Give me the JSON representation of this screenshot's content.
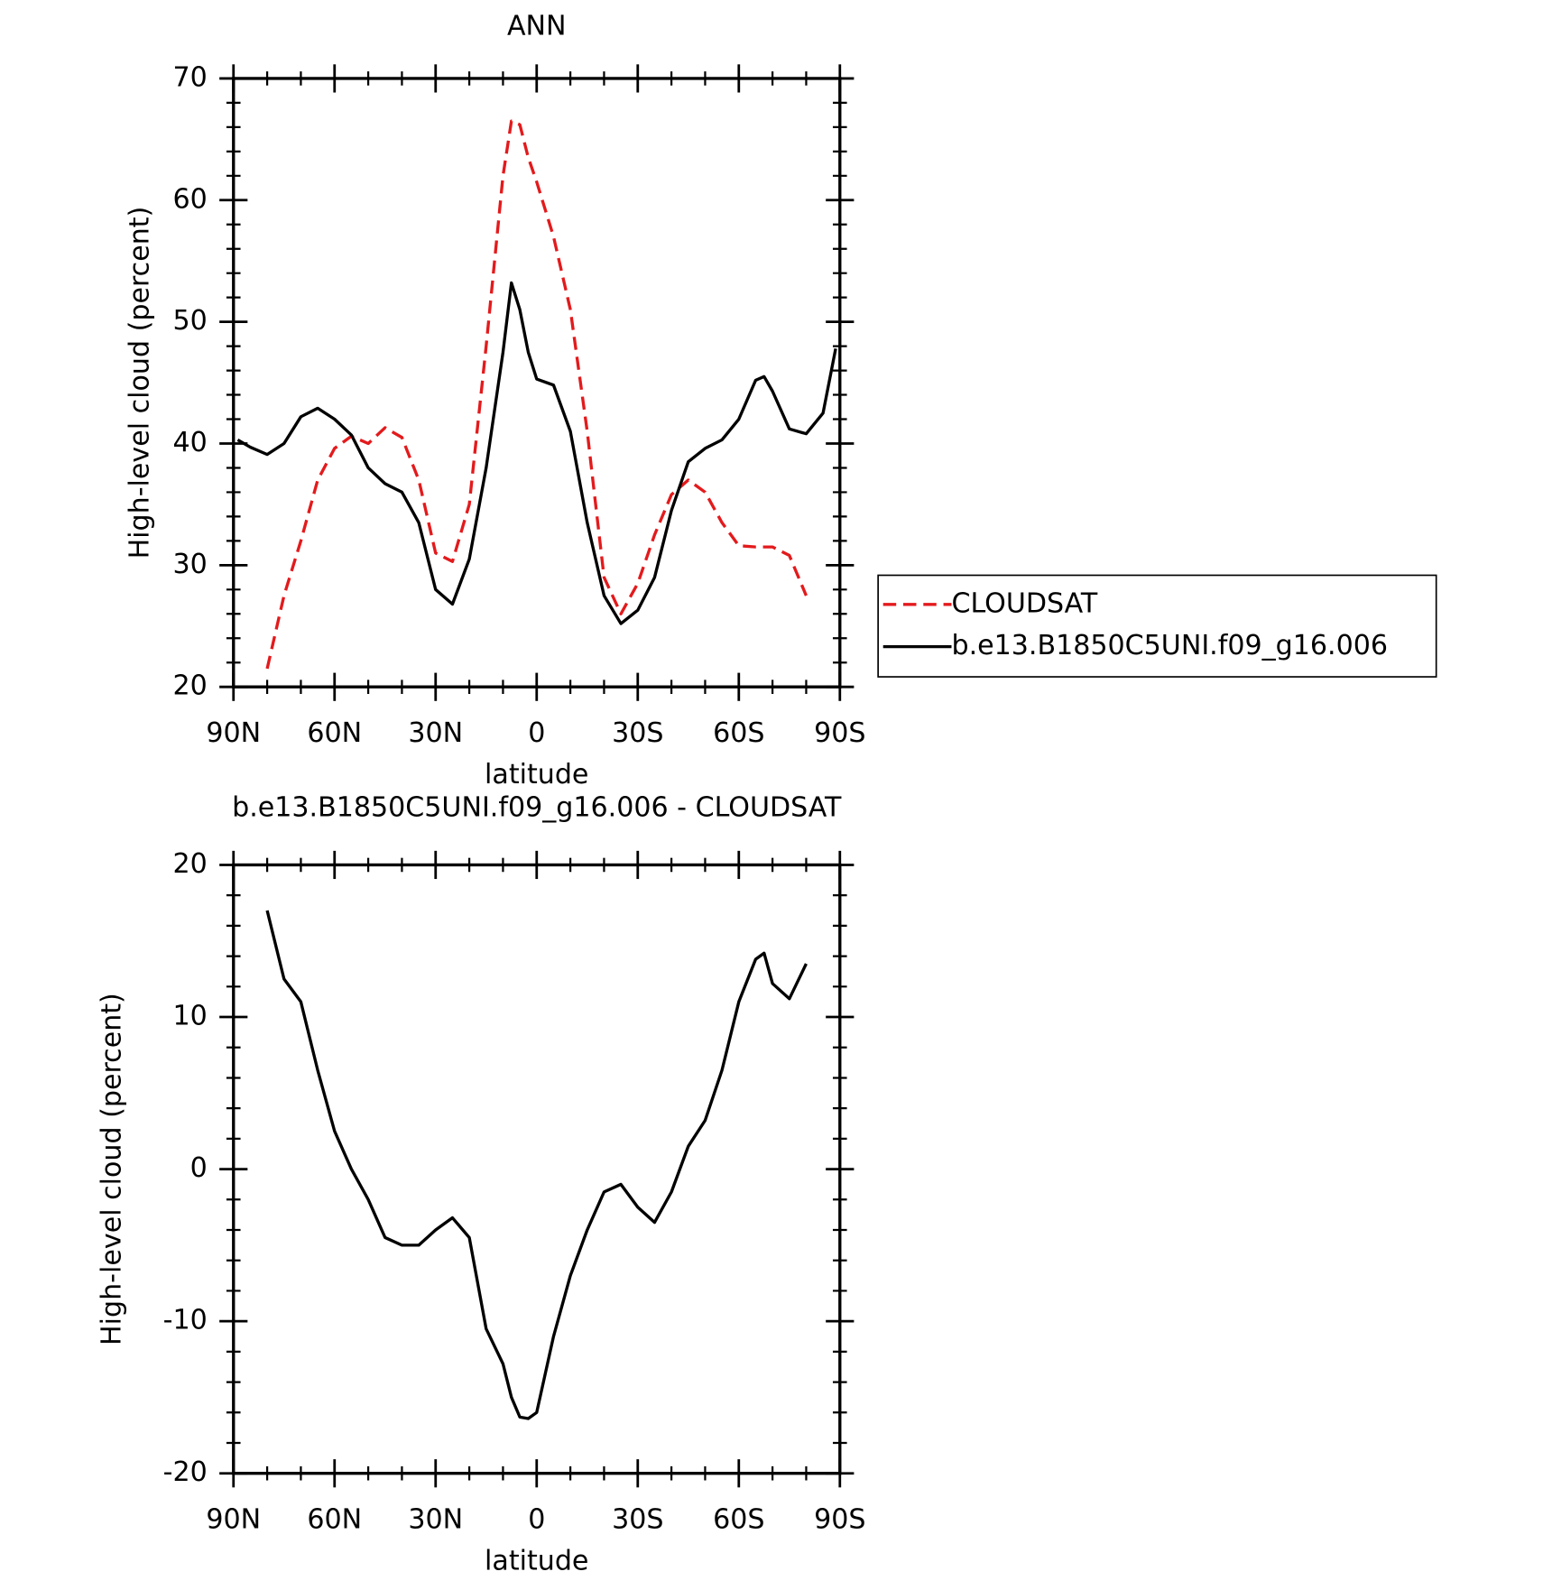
{
  "chart_data": [
    {
      "type": "line",
      "title": "ANN",
      "xlabel": "latitude",
      "ylabel": "High-level cloud (percent)",
      "x": [
        88.75,
        85,
        80,
        75,
        70,
        65,
        60,
        55,
        50,
        45,
        40,
        35,
        30,
        25,
        20,
        15,
        10,
        7.5,
        5,
        2.5,
        0,
        -5,
        -10,
        -15,
        -20,
        -25,
        -30,
        -35,
        -40,
        -45,
        -50,
        -55,
        -60,
        -65,
        -67.5,
        -70,
        -75,
        -80,
        -85,
        -88.75
      ],
      "series": [
        {
          "name": "CLOUDSAT",
          "color": "#e31a1c",
          "line_style": "dashed",
          "values": [
            null,
            null,
            21.5,
            27.5,
            32,
            37,
            39.6,
            40.6,
            40,
            41.3,
            40.5,
            37,
            31,
            30.3,
            35,
            48,
            62,
            66.5,
            66.2,
            63.5,
            61.5,
            57,
            51,
            41,
            29,
            26,
            28.5,
            32.5,
            35.8,
            37,
            36,
            33.5,
            31.6,
            31.5,
            31.5,
            31.5,
            30.8,
            27.5,
            null,
            null
          ]
        },
        {
          "name": "b.e13.B1850C5UNI.f09_g16.006",
          "color": "#000000",
          "line_style": "solid",
          "values": [
            40.3,
            39.7,
            39.1,
            40.0,
            42.2,
            42.9,
            42.0,
            40.7,
            38.0,
            36.7,
            36.0,
            33.5,
            28.0,
            26.8,
            30.5,
            38.0,
            47.5,
            53.2,
            51,
            47.5,
            45.3,
            44.8,
            41,
            33.5,
            27.5,
            25.2,
            26.3,
            29,
            34.5,
            38.5,
            39.6,
            40.3,
            42,
            45.2,
            45.5,
            44.3,
            41.2,
            40.8,
            42.5,
            47.8
          ]
        }
      ],
      "xlim": [
        90,
        -90
      ],
      "xticks": [
        {
          "value": 90,
          "label": "90N"
        },
        {
          "value": 60,
          "label": "60N"
        },
        {
          "value": 30,
          "label": "30N"
        },
        0,
        {
          "value": -30,
          "label": "30S"
        },
        {
          "value": -60,
          "label": "60S"
        },
        {
          "value": -90,
          "label": "90S"
        }
      ],
      "ylim": [
        20,
        70
      ],
      "yticks": [
        20,
        30,
        40,
        50,
        60,
        70
      ],
      "grid": false,
      "legend": "right"
    },
    {
      "type": "line",
      "title": "b.e13.B1850C5UNI.f09_g16.006 - CLOUDSAT",
      "xlabel": "latitude",
      "ylabel": "High-level cloud (percent)",
      "x": [
        88.75,
        85,
        80,
        75,
        70,
        65,
        60,
        55,
        50,
        45,
        40,
        35,
        30,
        25,
        20,
        15,
        10,
        7.5,
        5,
        2.5,
        0,
        -5,
        -10,
        -15,
        -20,
        -25,
        -30,
        -35,
        -40,
        -45,
        -50,
        -55,
        -60,
        -65,
        -67.5,
        -70,
        -75,
        -80,
        -85,
        -88.75
      ],
      "series": [
        {
          "color": "#000000",
          "line_style": "solid",
          "values": [
            null,
            null,
            17,
            12.5,
            11,
            6.5,
            2.5,
            0,
            -2,
            -4.5,
            -5,
            -5,
            -4,
            -3.2,
            -4.5,
            -10.5,
            -12.8,
            -15,
            -16.3,
            -16.4,
            -16,
            -11,
            -7,
            -4,
            -1.5,
            -1,
            -2.5,
            -3.5,
            -1.5,
            1.5,
            3.2,
            6.5,
            11,
            13.8,
            14.2,
            12.2,
            11.2,
            13.5,
            null,
            null
          ]
        }
      ],
      "xlim": [
        90,
        -90
      ],
      "xticks": [
        {
          "value": 90,
          "label": "90N"
        },
        {
          "value": 60,
          "label": "60N"
        },
        {
          "value": 30,
          "label": "30N"
        },
        0,
        {
          "value": -30,
          "label": "30S"
        },
        {
          "value": -60,
          "label": "60S"
        },
        {
          "value": -90,
          "label": "90S"
        }
      ],
      "ylim": [
        -20,
        20
      ],
      "yticks": [
        -20,
        -10,
        0,
        10,
        20
      ],
      "grid": false
    }
  ]
}
